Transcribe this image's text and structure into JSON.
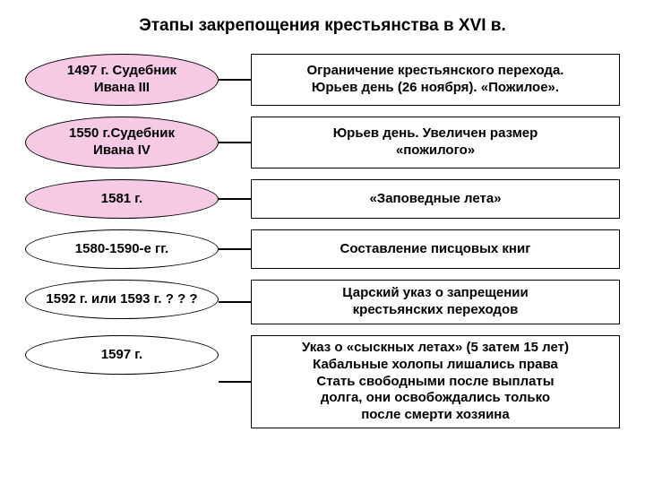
{
  "title": {
    "text": "Этапы закрепощения крестьянства в XVI в.",
    "fontsize": 19,
    "color": "#000000"
  },
  "layout": {
    "pill_width": 216,
    "pill_border_color": "#000000",
    "pill_border_width": 1,
    "rect_border_color": "#000000",
    "rect_border_width": 1,
    "rect_background": "#ffffff",
    "connector_width": 36,
    "connector_color": "#000000",
    "label_fontsize": 15,
    "desc_fontsize": 15
  },
  "rows": [
    {
      "label": "1497 г. Судебник Ивана III",
      "label_lines": "1497 г. Судебник\nИвана III",
      "pill_background": "#f6cae4",
      "pill_height": 58,
      "desc": "Ограничение крестьянского перехода. Юрьев день (26 ноября). «Пожилое».",
      "desc_lines": "Ограничение крестьянского перехода.\nЮрьев день (26 ноября). «Пожилое».",
      "rect_height": 50
    },
    {
      "label": "1550 г. Судебник Ивана IV",
      "label_lines": "1550 г.Судебник\nИвана IV",
      "pill_background": "#f6cae4",
      "pill_height": 58,
      "desc": "Юрьев день. Увеличен размер «пожилого»",
      "desc_lines": "Юрьев день. Увеличен размер\n«пожилого»",
      "rect_height": 50
    },
    {
      "label": "1581 г.",
      "label_lines": "1581 г.",
      "pill_background": "#f6cae4",
      "pill_height": 44,
      "desc": "«Заповедные лета»",
      "desc_lines": "«Заповедные лета»",
      "rect_height": 40
    },
    {
      "label": "1580-1590-е гг.",
      "label_lines": "1580-1590-е гг.",
      "pill_background": "#ffffff",
      "pill_height": 44,
      "desc": "Составление писцовых книг",
      "desc_lines": "Составление писцовых книг",
      "rect_height": 40
    },
    {
      "label": "1592 г. или 1593 г. ? ? ?",
      "label_lines": "1592 г. или 1593 г. ? ? ?",
      "pill_background": "#ffffff",
      "pill_height": 44,
      "desc": "Царский указ о запрещении крестьянских переходов",
      "desc_lines": "Царский указ о запрещении\nкрестьянских  переходов",
      "rect_height": 50
    },
    {
      "label": "1597 г.",
      "label_lines": "1597 г.",
      "pill_background": "#ffffff",
      "pill_height": 44,
      "desc": "Указ о «сыскных летах» (5 затем 15 лет) Кабальные холопы лишались права Стать свободными после выплаты долга, они освобождались только после смерти хозяина",
      "desc_lines": "Указ о «сыскных летах» (5 затем 15 лет)\nКабальные холопы лишались права\nСтать свободными после выплаты\nдолга, они освобождались только\nпосле смерти хозяина",
      "rect_height": 100
    }
  ]
}
